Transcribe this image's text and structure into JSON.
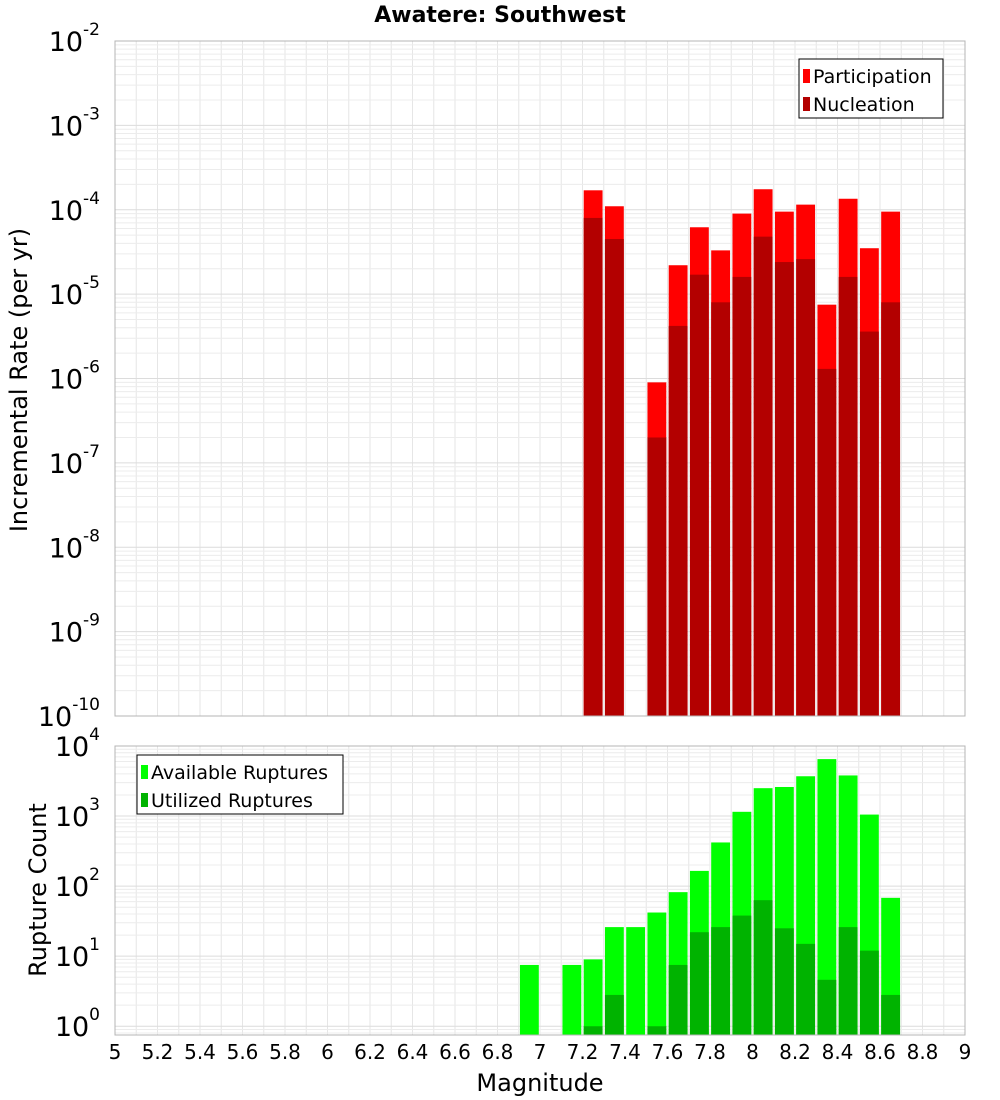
{
  "title": "Awatere: Southwest",
  "xlabel": "Magnitude",
  "x_ticks": [
    "5",
    "5.2",
    "5.4",
    "5.6",
    "5.8",
    "6",
    "6.2",
    "6.4",
    "6.6",
    "6.8",
    "7",
    "7.2",
    "7.4",
    "7.6",
    "7.8",
    "8",
    "8.2",
    "8.4",
    "8.6",
    "8.8",
    "9"
  ],
  "colors": {
    "participation": "#ff0000",
    "nucleation": "#b30000",
    "available": "#00ff00",
    "utilized": "#00b300",
    "grid": "#e6e6e6",
    "frame": "#b4b4b4"
  },
  "chart_data": [
    {
      "type": "bar",
      "panel": "top",
      "ylabel": "Incremental Rate (per yr)",
      "xlim": [
        5,
        9
      ],
      "ylim": [
        1e-10,
        0.01
      ],
      "yscale": "log",
      "y_ticks": [
        {
          "base": "10",
          "exp": "-10"
        },
        {
          "base": "10",
          "exp": "-9"
        },
        {
          "base": "10",
          "exp": "-8"
        },
        {
          "base": "10",
          "exp": "-7"
        },
        {
          "base": "10",
          "exp": "-6"
        },
        {
          "base": "10",
          "exp": "-5"
        },
        {
          "base": "10",
          "exp": "-4"
        },
        {
          "base": "10",
          "exp": "-3"
        },
        {
          "base": "10",
          "exp": "-2"
        }
      ],
      "grid": true,
      "legend_position": "top-right",
      "x": [
        7.25,
        7.35,
        7.55,
        7.65,
        7.75,
        7.85,
        7.95,
        8.05,
        8.15,
        8.25,
        8.35,
        8.45,
        8.55,
        8.65
      ],
      "series": [
        {
          "name": "Participation",
          "values": [
            0.00017,
            0.00011,
            9e-07,
            2.2e-05,
            6.2e-05,
            3.3e-05,
            9e-05,
            0.000175,
            9.5e-05,
            0.000115,
            7.5e-06,
            0.000135,
            3.5e-05,
            9.5e-05
          ]
        },
        {
          "name": "Nucleation",
          "values": [
            8e-05,
            4.5e-05,
            2e-07,
            4.2e-06,
            1.7e-05,
            8e-06,
            1.6e-05,
            4.8e-05,
            2.4e-05,
            2.6e-05,
            1.3e-06,
            1.6e-05,
            3.6e-06,
            8e-06
          ]
        }
      ]
    },
    {
      "type": "bar",
      "panel": "bottom",
      "ylabel": "Rupture Count",
      "xlim": [
        5,
        9
      ],
      "ylim": [
        0.75,
        10000
      ],
      "yscale": "log",
      "y_ticks": [
        {
          "base": "10",
          "exp": "0"
        },
        {
          "base": "10",
          "exp": "1"
        },
        {
          "base": "10",
          "exp": "2"
        },
        {
          "base": "10",
          "exp": "3"
        },
        {
          "base": "10",
          "exp": "4"
        }
      ],
      "grid": true,
      "legend_position": "top-left",
      "x": [
        6.95,
        7.15,
        7.25,
        7.35,
        7.45,
        7.55,
        7.65,
        7.75,
        7.85,
        7.95,
        8.05,
        8.15,
        8.25,
        8.35,
        8.45,
        8.55,
        8.65
      ],
      "series": [
        {
          "name": "Available Ruptures",
          "values": [
            7.5,
            7.5,
            9,
            26,
            26,
            42,
            82,
            165,
            420,
            1150,
            2500,
            2600,
            3700,
            6500,
            3800,
            1050,
            68
          ]
        },
        {
          "name": "Utilized Ruptures",
          "values": [
            null,
            null,
            1,
            2.8,
            null,
            1,
            7.5,
            22,
            26,
            38,
            63,
            25,
            15,
            4.6,
            26,
            12,
            2.8
          ]
        }
      ]
    }
  ]
}
